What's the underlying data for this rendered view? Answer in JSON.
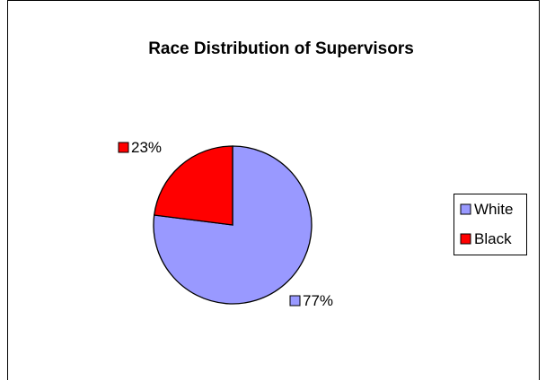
{
  "chart_data": {
    "type": "pie",
    "title": "Race Distribution of Supervisors",
    "slices": [
      {
        "label": "White",
        "value": 77,
        "data_label": "77%",
        "color": "#9999ff"
      },
      {
        "label": "Black",
        "value": 23,
        "data_label": "23%",
        "color": "#ff0000"
      }
    ],
    "legend": {
      "position": "right",
      "entries": [
        "White",
        "Black"
      ]
    },
    "style": {
      "border_color": "#000000",
      "background": "#ffffff"
    }
  }
}
